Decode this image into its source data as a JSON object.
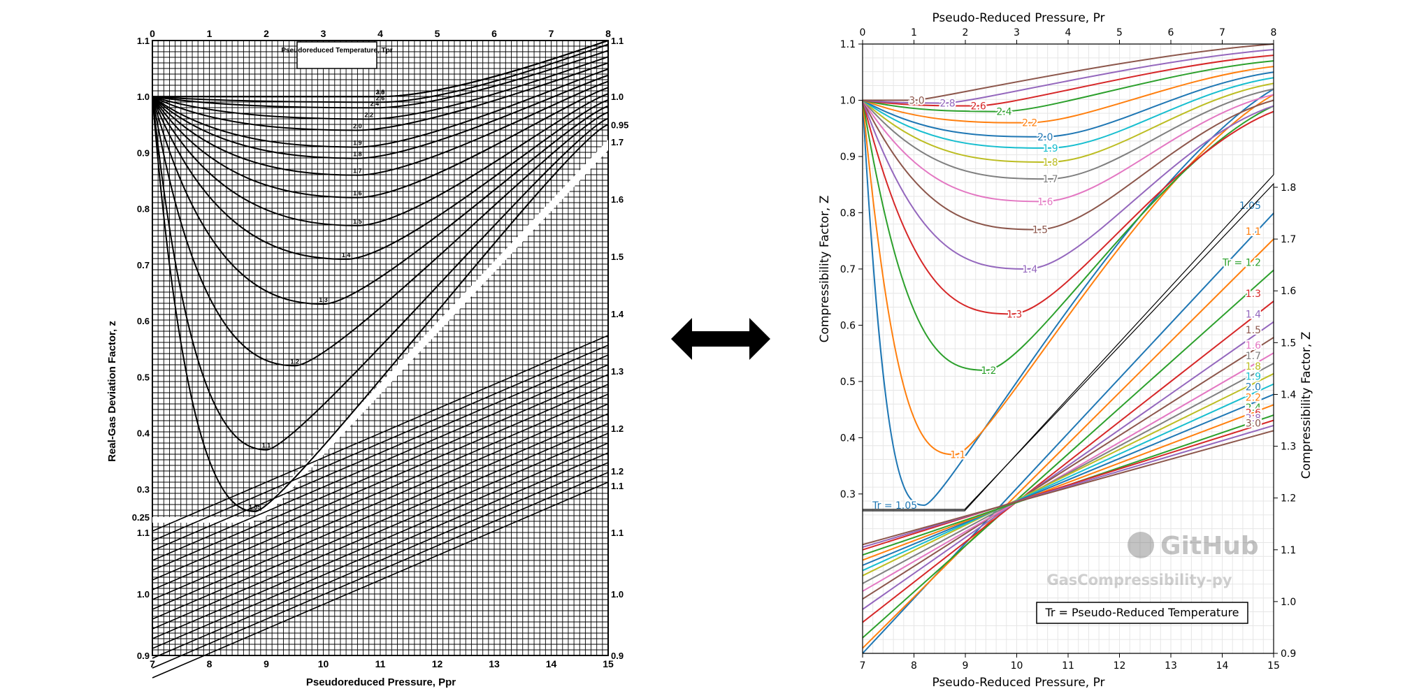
{
  "chart_data": [
    {
      "type": "line",
      "style": "hand-drawn scanned chart",
      "title": "Pseudoreduced Temperature, Tpr",
      "xlabel_top_part": "Pseudoreduced Pressure, Ppr",
      "ylabel": "Real-Gas Deviation Factor, z",
      "top_x_ticks": [
        "0",
        "1",
        "2",
        "3",
        "4",
        "5",
        "6",
        "7",
        "8"
      ],
      "bottom_x_ticks": [
        "7",
        "8",
        "9",
        "10",
        "11",
        "12",
        "13",
        "14",
        "15"
      ],
      "left_y_ticks_upper": [
        "0.25",
        "0.3",
        "0.4",
        "0.5",
        "0.6",
        "0.7",
        "0.8",
        "0.9",
        "1.0",
        "1.1"
      ],
      "right_y_ticks_upper": [
        "0.95",
        "1.0",
        "1.1"
      ],
      "right_y_ticks_lower_axis": [
        "1.1",
        "1.2",
        "1.3",
        "1.4",
        "1.5",
        "1.6",
        "1.7"
      ],
      "left_y_ticks_lower": [
        "0.9",
        "1.0",
        "1.1"
      ],
      "right_y_ticks_bottom": [
        "0.9",
        "1.0",
        "1.1",
        "1.2"
      ],
      "curve_labels": [
        "3.0",
        "2.8",
        "2.6",
        "2.4",
        "2.2",
        "2.0",
        "1.9",
        "1.8",
        "1.7",
        "1.6",
        "1.5",
        "1.4",
        "1.3",
        "1.2",
        "1.1",
        "1.05"
      ],
      "upper_minima_z": [
        0.26,
        0.37,
        0.52,
        0.63,
        0.71,
        0.77,
        0.82,
        0.86,
        0.89,
        0.91,
        0.94,
        0.96,
        0.98,
        0.99,
        1.0,
        1.0
      ],
      "upper_minima_p": [
        1.8,
        2.0,
        2.5,
        3.0,
        3.4,
        3.6,
        3.6,
        3.6,
        3.6,
        3.6,
        3.6,
        3.8,
        3.9,
        4.0,
        4.0,
        4.0
      ]
    },
    {
      "type": "line",
      "xlabel": "Pseudo-Reduced Pressure, Pr",
      "ylabel_left": "Compressibility Factor, Z",
      "ylabel_right": "Compressibility Factor, Z",
      "upper_x_ticks": [
        "0",
        "1",
        "2",
        "3",
        "4",
        "5",
        "6",
        "7",
        "8"
      ],
      "lower_x_ticks": [
        "7",
        "8",
        "9",
        "10",
        "11",
        "12",
        "13",
        "14",
        "15"
      ],
      "upper_y_ticks": [
        "0.3",
        "0.4",
        "0.5",
        "0.6",
        "0.7",
        "0.8",
        "0.9",
        "1.0",
        "1.1"
      ],
      "right_y_ticks": [
        "0.9",
        "1.0",
        "1.1",
        "1.2",
        "1.3",
        "1.4",
        "1.5",
        "1.6",
        "1.7",
        "1.8"
      ],
      "xlim_upper": [
        0,
        8
      ],
      "ylim_upper": [
        0.27,
        1.1
      ],
      "xlim_lower": [
        7,
        15
      ],
      "ylim_lower": [
        0.9,
        1.8
      ],
      "Tr_labels": [
        "1.05",
        "1.1",
        "1.2",
        "1.3",
        "1.4",
        "1.5",
        "1.6",
        "1.7",
        "1.8",
        "1.9",
        "2.0",
        "2.2",
        "2.4",
        "2.6",
        "2.8",
        "3.0"
      ],
      "Tr_label_prefix": "Tr = ",
      "upper_minimum_P": [
        1.2,
        1.8,
        2.4,
        2.9,
        3.2,
        3.4,
        3.5,
        3.6,
        3.6,
        3.6,
        3.5,
        3.2,
        2.7,
        2.2,
        1.6,
        1.0
      ],
      "upper_minimum_Z": [
        0.28,
        0.37,
        0.52,
        0.62,
        0.7,
        0.77,
        0.82,
        0.86,
        0.89,
        0.915,
        0.935,
        0.96,
        0.98,
        0.99,
        0.995,
        1.0
      ],
      "upper_end_Z_at_8": [
        1.02,
        1.01,
        0.99,
        0.98,
        0.99,
        1.0,
        1.01,
        1.02,
        1.03,
        1.04,
        1.05,
        1.06,
        1.07,
        1.08,
        1.09,
        1.1
      ],
      "lower_start_Z_at_7": [
        0.9,
        0.91,
        0.93,
        0.96,
        0.985,
        1.005,
        1.02,
        1.035,
        1.05,
        1.06,
        1.07,
        1.08,
        1.09,
        1.1,
        1.105,
        1.11
      ],
      "lower_end_Z_at_15": [
        1.75,
        1.7,
        1.64,
        1.58,
        1.54,
        1.51,
        1.48,
        1.46,
        1.44,
        1.42,
        1.4,
        1.38,
        1.36,
        1.35,
        1.34,
        1.33
      ],
      "colors": [
        "#1f77b4",
        "#ff7f0e",
        "#2ca02c",
        "#d62728",
        "#9467bd",
        "#8c564b",
        "#e377c2",
        "#7f7f7f",
        "#bcbd22",
        "#17becf",
        "#1f77b4",
        "#ff7f0e",
        "#2ca02c",
        "#d62728",
        "#9467bd",
        "#8c564b"
      ],
      "watermark_brand": "GitHub",
      "watermark_repo": "GasCompressibility-py",
      "legend_note": "Tr = Pseudo-Reduced Temperature",
      "grid": true
    }
  ],
  "arrow": {
    "name": "double-arrow"
  }
}
